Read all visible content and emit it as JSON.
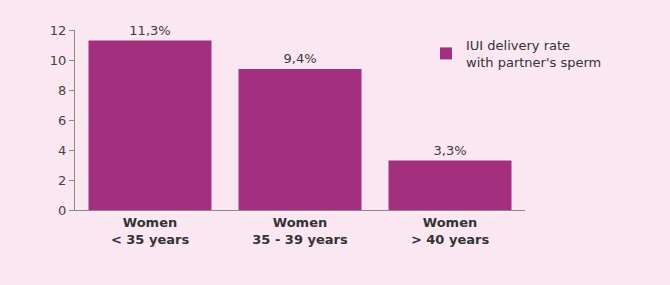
{
  "chart_data": {
    "type": "bar",
    "categories": [
      "Women\n< 35 years",
      "Women\n35 - 39 years",
      "Women\n> 40 years"
    ],
    "series": [
      {
        "name": "IUI delivery rate\nwith partner's sperm",
        "color": "#a3307f",
        "values": [
          11.3,
          9.4,
          3.3
        ],
        "value_labels": [
          "11,3%",
          "9,4%",
          "3,3%"
        ]
      }
    ],
    "ylim": [
      0,
      12
    ],
    "yticks": [
      0,
      2,
      4,
      6,
      8,
      10,
      12
    ],
    "grid": false,
    "legend": "upper right",
    "data_labels": true
  }
}
